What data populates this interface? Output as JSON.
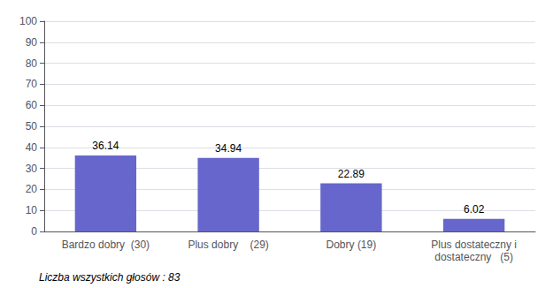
{
  "chart_data": {
    "type": "bar",
    "categories": [
      "Bardzo dobry  (30)",
      "Plus dobry    (29)",
      "Dobry (19)",
      "Plus dostateczny i\ndostateczny   (5)"
    ],
    "values": [
      36.14,
      34.94,
      22.89,
      6.02
    ],
    "color": "#6666cc",
    "ylim": [
      0,
      100
    ],
    "yticks": [
      0,
      10,
      20,
      30,
      40,
      50,
      60,
      70,
      80,
      90,
      100
    ],
    "grid": true,
    "data_labels": true,
    "annotation": "Liczba wszystkich głosów : 83"
  }
}
